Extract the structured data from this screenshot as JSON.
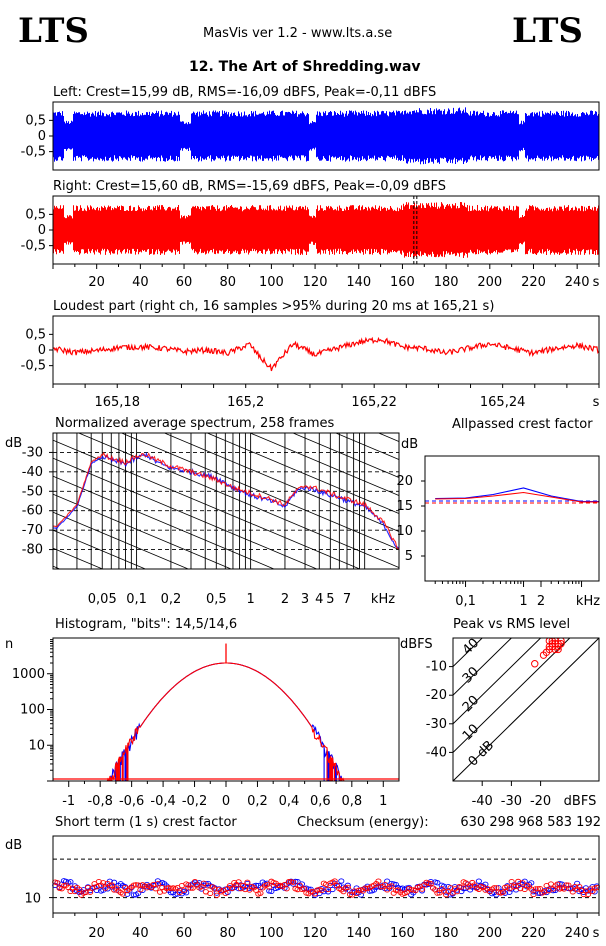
{
  "header": {
    "logo_left": "LTS",
    "logo_right": "LTS",
    "app_title": "MasVis ver 1.2 - www.lts.a.se",
    "file_title": "12. The Art of Shredding.wav"
  },
  "colors": {
    "left": "#0000ff",
    "right": "#ff0000",
    "mixed": "#800080",
    "grid": "#000000"
  },
  "chart_data": [
    {
      "id": "left_waveform",
      "type": "area",
      "title": "Left: Crest=15,99 dB, RMS=-16,09 dBFS, Peak=-0,11 dBFS",
      "ylim": [
        -1,
        1
      ],
      "yticks": [
        "0,5",
        "0",
        "-0,5"
      ],
      "x_unit": "s",
      "duration_s": 250,
      "envelope_level": 0.82,
      "quiet_segments_s": [
        [
          5,
          9
        ],
        [
          58,
          63
        ],
        [
          117,
          120
        ],
        [
          213,
          216
        ]
      ],
      "color": "#0000ff"
    },
    {
      "id": "right_waveform",
      "type": "area",
      "title": "Right: Crest=15,60 dB, RMS=-15,69 dBFS, Peak=-0,09 dBFS",
      "ylim": [
        -1,
        1
      ],
      "yticks": [
        "0,5",
        "0",
        "-0,5"
      ],
      "xticks": [
        "20",
        "40",
        "60",
        "80",
        "100",
        "120",
        "140",
        "160",
        "180",
        "200",
        "220",
        "240"
      ],
      "x_unit": "s",
      "duration_s": 250,
      "marker_s": 165.21,
      "color": "#ff0000"
    },
    {
      "id": "loudest_part",
      "type": "line",
      "title": "Loudest part (right ch, 16 samples >95% during 20 ms at 165,21 s)",
      "xlim": [
        165.2,
        165.25
      ],
      "xticks": [
        "165,18",
        "165,2",
        "165,22",
        "165,24"
      ],
      "x_unit": "s",
      "yticks": [
        "0,5",
        "0",
        "-0,5"
      ],
      "ylim": [
        -1,
        1
      ],
      "x": [
        165.2,
        165.202,
        165.204,
        165.206,
        165.208,
        165.21,
        165.212,
        165.214,
        165.216,
        165.218,
        165.219,
        165.22,
        165.222,
        165.224,
        165.226,
        165.228,
        165.23,
        165.232,
        165.234,
        165.236,
        165.238,
        165.24,
        165.242,
        165.244,
        165.246,
        165.248,
        165.25
      ],
      "y": [
        0.05,
        -0.08,
        -0.02,
        0.08,
        0.1,
        0.06,
        -0.05,
        0.0,
        -0.1,
        0.18,
        -0.25,
        -0.6,
        0.2,
        -0.15,
        0.05,
        0.25,
        0.35,
        0.1,
        0.05,
        -0.1,
        0.05,
        0.2,
        0.05,
        -0.1,
        0.05,
        0.15,
        0.0
      ],
      "color": "#ff0000"
    },
    {
      "id": "average_spectrum",
      "type": "line",
      "title": "Normalized average spectrum, 258 frames",
      "ylabel": "dB",
      "ylim": [
        -90,
        -20
      ],
      "yticks": [
        "-30",
        "-40",
        "-50",
        "-60",
        "-70",
        "-80"
      ],
      "xticks": [
        "0,05",
        "0,1",
        "0,2",
        "0,5",
        "1",
        "2",
        "3",
        "4",
        "5",
        "7",
        "kHz"
      ],
      "log_x": true,
      "x_khz": [
        0.02,
        0.03,
        0.04,
        0.05,
        0.06,
        0.08,
        0.1,
        0.12,
        0.15,
        0.2,
        0.3,
        0.5,
        0.7,
        1,
        1.5,
        2,
        2.5,
        3,
        4,
        5,
        6,
        7,
        8,
        10,
        12,
        15,
        20
      ],
      "series": [
        {
          "color": "#0000ff",
          "values": [
            -69,
            -58,
            -36,
            -32,
            -34,
            -36,
            -33,
            -31,
            -35,
            -38,
            -40,
            -43,
            -48,
            -52,
            -55,
            -58,
            -50,
            -48,
            -50,
            -52,
            -53,
            -55,
            -56,
            -58,
            -62,
            -68,
            -81
          ]
        },
        {
          "color": "#ff0000",
          "values": [
            -68,
            -57,
            -35,
            -31,
            -33,
            -35,
            -32,
            -31,
            -34,
            -37,
            -40,
            -44,
            -48,
            -51,
            -54,
            -57,
            -50,
            -47,
            -49,
            -51,
            -53,
            -54,
            -55,
            -57,
            -61,
            -67,
            -80
          ]
        }
      ]
    },
    {
      "id": "allpassed_crest",
      "type": "line",
      "title": "Allpassed crest factor",
      "ylabel": "dB",
      "ylim": [
        0,
        25
      ],
      "yticks": [
        "20",
        "15",
        "10",
        "5"
      ],
      "xticks": [
        "0,1",
        "1",
        "2",
        "kHz"
      ],
      "log_x": true,
      "x_khz": [
        0.03,
        0.1,
        0.3,
        1,
        3,
        10,
        20
      ],
      "series": [
        {
          "color": "#0000ff",
          "values": [
            16.5,
            16.6,
            17.3,
            18.6,
            17,
            15.9,
            15.9
          ]
        },
        {
          "color": "#ff0000",
          "values": [
            16.4,
            16.5,
            17,
            17.7,
            16.8,
            15.8,
            15.8
          ]
        }
      ],
      "reference_lines": [
        {
          "color": "#0000ff",
          "value": 16.0
        },
        {
          "color": "#ff0000",
          "value": 15.6
        }
      ]
    },
    {
      "id": "histogram",
      "type": "line",
      "title": "Histogram, \"bits\": 14,5/14,6",
      "ylabel": "n",
      "log_y": true,
      "ylim": [
        1,
        100000
      ],
      "yticks": [
        "1000",
        "100",
        "10"
      ],
      "xlim": [
        -1.1,
        1.1
      ],
      "xticks": [
        "-1",
        "-0,8",
        "-0,6",
        "-0,4",
        "-0,2",
        "0",
        "0,2",
        "0,4",
        "0,6",
        "0,8",
        "1"
      ],
      "gaussian_sigma": 0.19,
      "peak_count": 2000,
      "center_spike": 7000,
      "series_colors": [
        "#0000ff",
        "#ff0000"
      ]
    },
    {
      "id": "peak_vs_rms",
      "type": "scatter",
      "title": "Peak vs RMS level",
      "ylabel": "dBFS",
      "xlabel": "dBFS",
      "xlim": [
        -50,
        0
      ],
      "ylim": [
        -50,
        0
      ],
      "xticks": [
        "-40",
        "-30",
        "-20"
      ],
      "yticks": [
        "-10",
        "-20",
        "-30",
        "-40"
      ],
      "crest_lines": [
        "0 dB",
        "10",
        "20",
        "30",
        "40"
      ],
      "points": [
        {
          "x": -16,
          "y": -2
        },
        {
          "x": -15,
          "y": -1
        },
        {
          "x": -17,
          "y": -3
        },
        {
          "x": -14,
          "y": -2
        },
        {
          "x": -16,
          "y": -1
        },
        {
          "x": -15,
          "y": -4
        },
        {
          "x": -18,
          "y": -5
        },
        {
          "x": -13,
          "y": -1
        },
        {
          "x": -14,
          "y": -3
        },
        {
          "x": -17,
          "y": -1
        },
        {
          "x": -16,
          "y": -3
        },
        {
          "x": -15,
          "y": -2
        },
        {
          "x": -19,
          "y": -6
        },
        {
          "x": -14,
          "y": -4
        },
        {
          "x": -13,
          "y": -2
        },
        {
          "x": -17,
          "y": -4
        },
        {
          "x": -22,
          "y": -9
        }
      ],
      "color": "#ff0000"
    },
    {
      "id": "short_term_crest",
      "type": "scatter",
      "title": "Short term (1 s) crest factor",
      "checksum_label": "Checksum (energy):",
      "checksum_value": "630 298 968 583 192",
      "ylabel": "dB",
      "ytick": "10",
      "xticks": [
        "20",
        "40",
        "60",
        "80",
        "100",
        "120",
        "140",
        "160",
        "180",
        "200",
        "220",
        "240"
      ],
      "x_unit": "s",
      "duration_s": 250,
      "base_level": 12.5,
      "series_colors": [
        "#0000ff",
        "#ff0000"
      ]
    }
  ]
}
